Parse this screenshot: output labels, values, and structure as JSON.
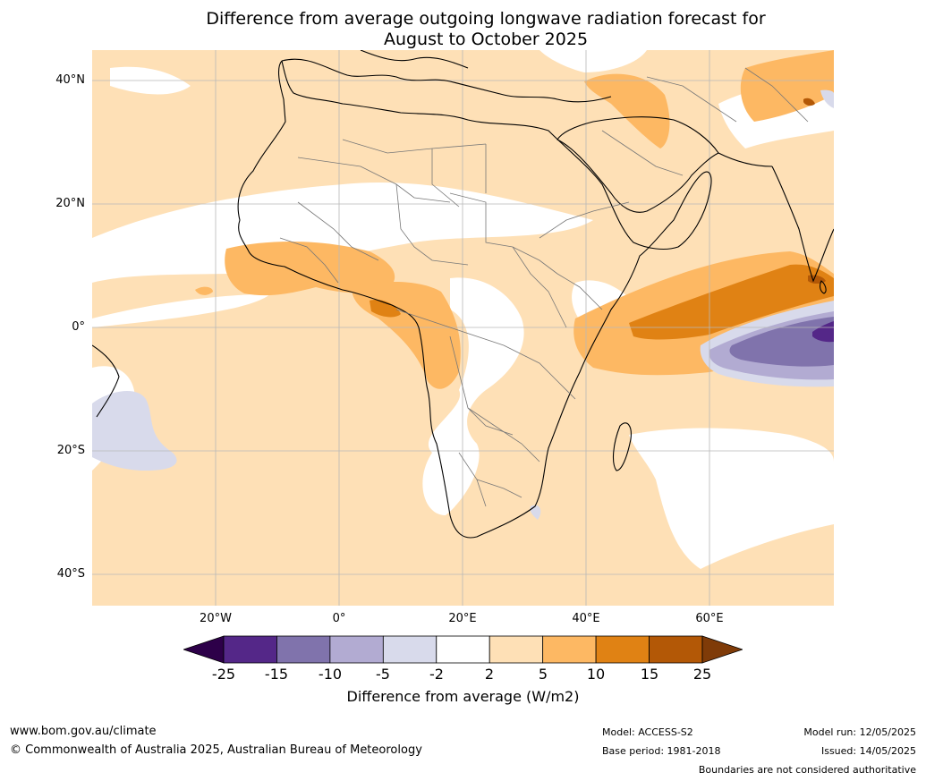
{
  "title": {
    "line1": "Difference from average outgoing longwave radiation forecast for",
    "line2": "August to October 2025"
  },
  "map": {
    "lat_labels": [
      "40°N",
      "20°N",
      "0°",
      "20°S",
      "40°S"
    ],
    "lon_labels": [
      "20°W",
      "0°",
      "20°E",
      "40°E",
      "60°E"
    ]
  },
  "legend": {
    "ticks": [
      "-25",
      "-15",
      "-10",
      "-5",
      "-2",
      "2",
      "5",
      "10",
      "15",
      "25"
    ],
    "label": "Difference from average (W/m2)",
    "colors": [
      "#2d0049",
      "#542788",
      "#8073ac",
      "#b2abd2",
      "#d8daeb",
      "#ffffff",
      "#fee0b6",
      "#fdb863",
      "#e08214",
      "#b35806",
      "#7f3b08"
    ]
  },
  "footer": {
    "url": "www.bom.gov.au/climate",
    "copyright": "© Commonwealth of Australia 2025, Australian Bureau of Meteorology",
    "model": "Model: ACCESS-S2",
    "base_period": "Base period: 1981-2018",
    "model_run": "Model run: 12/05/2025",
    "issued": "Issued: 14/05/2025",
    "disclaimer": "Boundaries are not considered authoritative"
  }
}
